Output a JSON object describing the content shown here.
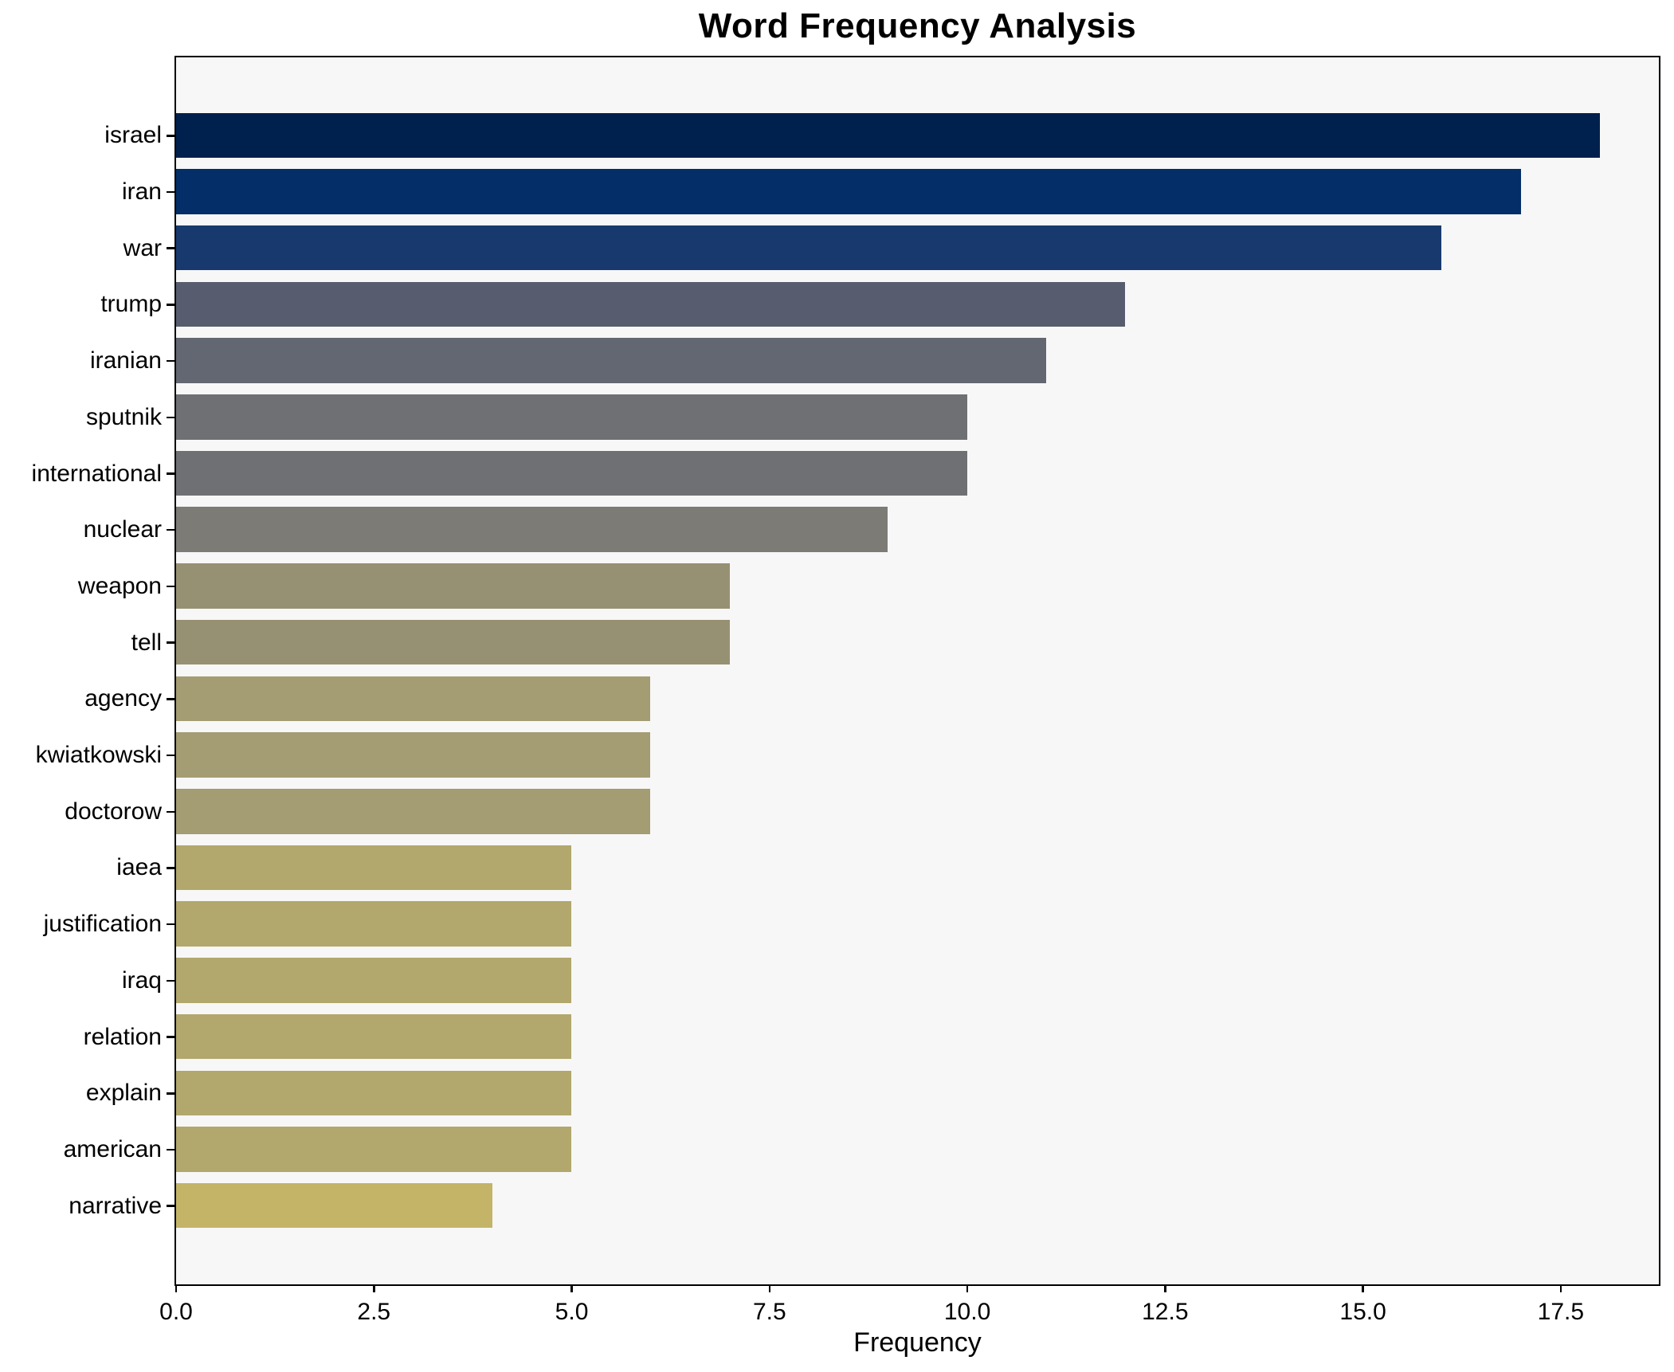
{
  "title": "Word Frequency Analysis",
  "chart_data": {
    "type": "bar",
    "orientation": "horizontal",
    "title": "Word Frequency Analysis",
    "xlabel": "Frequency",
    "ylabel": "",
    "categories": [
      "israel",
      "iran",
      "war",
      "trump",
      "iranian",
      "sputnik",
      "international",
      "nuclear",
      "weapon",
      "tell",
      "agency",
      "kwiatkowski",
      "doctorow",
      "iaea",
      "justification",
      "iraq",
      "relation",
      "explain",
      "american",
      "narrative"
    ],
    "values": [
      18,
      17,
      16,
      12,
      11,
      10,
      10,
      9,
      7,
      7,
      6,
      6,
      6,
      5,
      5,
      5,
      5,
      5,
      5,
      4
    ],
    "bar_colors": [
      "#00214D",
      "#032E67",
      "#17396E",
      "#575D6E",
      "#636771",
      "#6F7074",
      "#6F7074",
      "#7C7B76",
      "#979173",
      "#979173",
      "#A49C72",
      "#A49C72",
      "#A49C72",
      "#B2A76C",
      "#B2A76C",
      "#B2A76C",
      "#B2A76C",
      "#B2A76C",
      "#B2A76C",
      "#C3B467"
    ],
    "x_ticks": [
      0.0,
      2.5,
      5.0,
      7.5,
      10.0,
      12.5,
      15.0,
      17.5
    ],
    "x_tick_labels": [
      "0.0",
      "2.5",
      "5.0",
      "7.5",
      "10.0",
      "12.5",
      "15.0",
      "17.5"
    ],
    "xlim": [
      0,
      18.74
    ],
    "grid": false,
    "legend": null,
    "colormap": "cividis",
    "figure_bg": "#FFFFFF",
    "plot_bg": "#F7F7F7",
    "spine_color": "#000000",
    "text_color": "#000000"
  }
}
